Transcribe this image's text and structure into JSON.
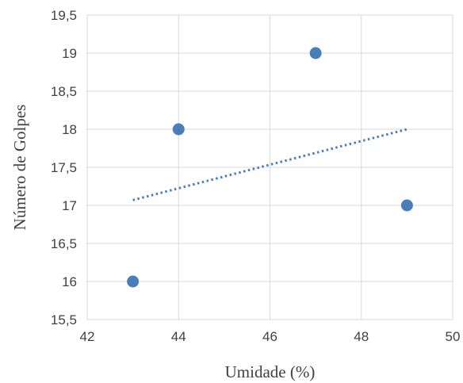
{
  "chart_data": {
    "type": "scatter",
    "xlabel": "Umidade (%)",
    "ylabel": "Número de Golpes",
    "xlim": [
      42,
      50
    ],
    "ylim": [
      15.5,
      19.5
    ],
    "x_ticks": [
      42,
      44,
      46,
      48,
      50
    ],
    "y_ticks": [
      15.5,
      16,
      16.5,
      17,
      17.5,
      18,
      18.5,
      19,
      19.5
    ],
    "x_tick_labels": [
      "42",
      "44",
      "46",
      "48",
      "50"
    ],
    "y_tick_labels": [
      "15,5",
      "16",
      "16,5",
      "17",
      "17,5",
      "18",
      "18,5",
      "19",
      "19,5"
    ],
    "grid": true,
    "series": [
      {
        "x": [
          43,
          44,
          47,
          49
        ],
        "y": [
          16,
          18,
          19,
          17
        ],
        "color": "#4a7ebb"
      }
    ],
    "trendline": {
      "style": "dotted",
      "color": "#4a7ebb",
      "x": [
        43,
        49
      ],
      "y": [
        17.07,
        18.0
      ]
    }
  }
}
